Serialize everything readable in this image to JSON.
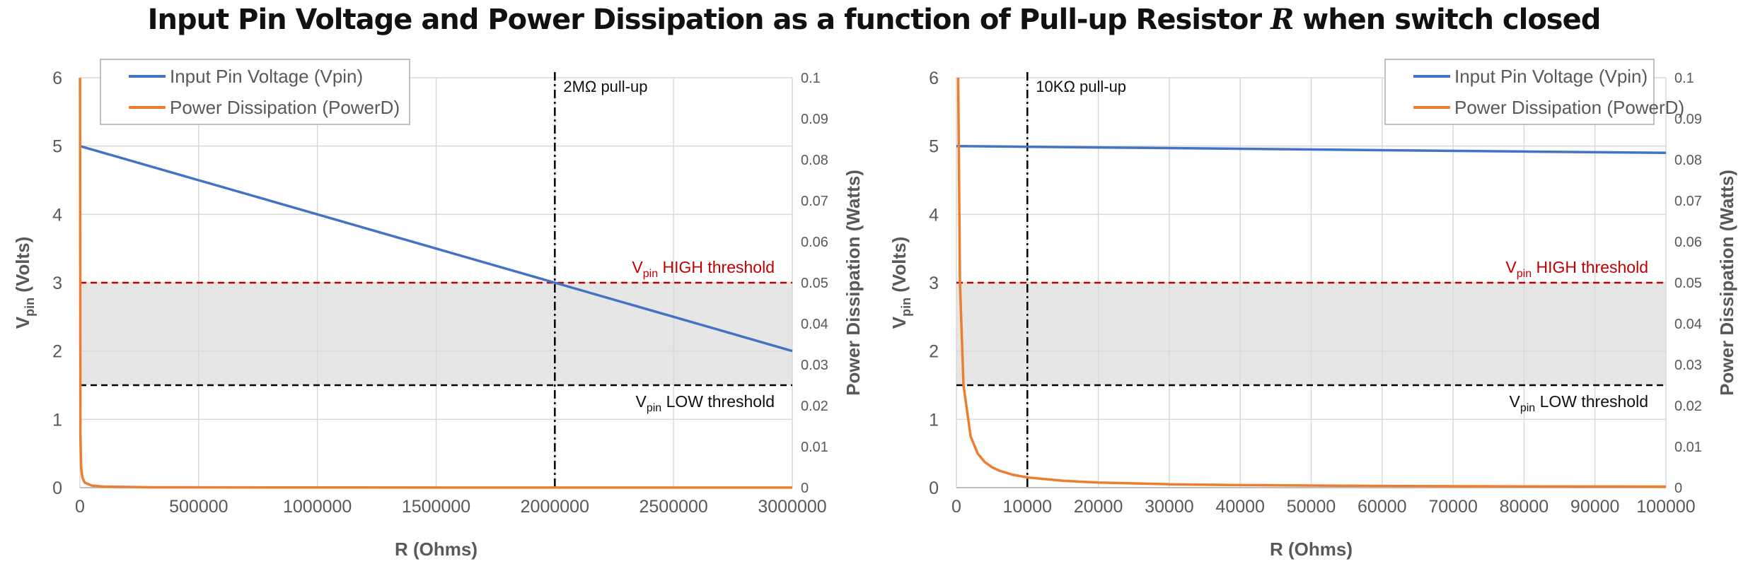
{
  "title": {
    "before": "Input Pin Voltage and Power Dissipation as a function of Pull-up Resistor ",
    "var": "R",
    "after": " when switch closed"
  },
  "chart_data": [
    {
      "type": "line",
      "xlabel": "R (Ohms)",
      "ylabel": "Vpin (Volts)",
      "y2label": "Power Dissipation (Watts)",
      "xlim": [
        0,
        3000000
      ],
      "ylim": [
        0,
        6
      ],
      "y2lim": [
        0,
        0.1
      ],
      "x_ticks": [
        "0",
        "500000",
        "1000000",
        "1500000",
        "2000000",
        "2500000",
        "3000000"
      ],
      "y_ticks": [
        "0",
        "1",
        "2",
        "3",
        "4",
        "5",
        "6"
      ],
      "y2_ticks": [
        "0",
        "0.01",
        "0.02",
        "0.03",
        "0.04",
        "0.05",
        "0.06",
        "0.07",
        "0.08",
        "0.09",
        "0.1"
      ],
      "grid": true,
      "legend_position": "top-left",
      "series": [
        {
          "name": "Input Pin Voltage (Vpin)",
          "axis": "left",
          "color": "#4472c4",
          "x": [
            0,
            500000,
            1000000,
            1500000,
            2000000,
            2500000,
            3000000
          ],
          "y": [
            5.0,
            4.5,
            4.0,
            3.5,
            3.0,
            2.5,
            2.0
          ]
        },
        {
          "name": "Power Dissipation (PowerD)",
          "axis": "right",
          "color": "#ed7d31",
          "x": [
            250,
            2000,
            5000,
            10000,
            20000,
            50000,
            100000,
            300000,
            1000000,
            3000000
          ],
          "y": [
            0.1,
            0.0125,
            0.005,
            0.0025,
            0.00125,
            0.0005,
            0.00025,
            8e-05,
            3e-05,
            1e-05
          ]
        }
      ],
      "shaded_band": {
        "from": 1.5,
        "to": 3.0,
        "color": "#e7e6e6"
      },
      "thresholds": [
        {
          "value": 3.0,
          "base": "V",
          "sub": "pin",
          "label": " HIGH threshold",
          "color": "#c00000"
        },
        {
          "value": 1.5,
          "base": "V",
          "sub": "pin",
          "label": " LOW threshold",
          "color": "#000000"
        }
      ],
      "marker_line": {
        "x": 2000000,
        "label": "2MΩ pull-up"
      }
    },
    {
      "type": "line",
      "xlabel": "R (Ohms)",
      "ylabel": "Vpin (Volts)",
      "y2label": "Power Dissipation (Watts)",
      "xlim": [
        0,
        100000
      ],
      "ylim": [
        0,
        6
      ],
      "y2lim": [
        0,
        0.1
      ],
      "x_ticks": [
        "0",
        "10000",
        "20000",
        "30000",
        "40000",
        "50000",
        "60000",
        "70000",
        "80000",
        "90000",
        "100000"
      ],
      "y_ticks": [
        "0",
        "1",
        "2",
        "3",
        "4",
        "5",
        "6"
      ],
      "y2_ticks": [
        "0",
        "0.01",
        "0.02",
        "0.03",
        "0.04",
        "0.05",
        "0.06",
        "0.07",
        "0.08",
        "0.09",
        "0.1"
      ],
      "grid": true,
      "legend_position": "top-right",
      "series": [
        {
          "name": "Input Pin Voltage (Vpin)",
          "axis": "left",
          "color": "#4472c4",
          "x": [
            0,
            20000,
            40000,
            60000,
            80000,
            100000
          ],
          "y": [
            5.0,
            4.98,
            4.96,
            4.94,
            4.92,
            4.9
          ]
        },
        {
          "name": "Power Dissipation (PowerD)",
          "axis": "right",
          "color": "#ed7d31",
          "x": [
            250,
            500,
            1000,
            2000,
            3000,
            4000,
            5000,
            6000,
            8000,
            10000,
            15000,
            20000,
            30000,
            40000,
            60000,
            80000,
            100000
          ],
          "y": [
            0.1,
            0.05,
            0.025,
            0.0125,
            0.00833,
            0.00625,
            0.005,
            0.00417,
            0.003125,
            0.0025,
            0.00167,
            0.00125,
            0.00083,
            0.000625,
            0.00042,
            0.00031,
            0.00025
          ]
        }
      ],
      "shaded_band": {
        "from": 1.5,
        "to": 3.0,
        "color": "#e7e6e6"
      },
      "thresholds": [
        {
          "value": 3.0,
          "base": "V",
          "sub": "pin",
          "label": " HIGH threshold",
          "color": "#c00000"
        },
        {
          "value": 1.5,
          "base": "V",
          "sub": "pin",
          "label": " LOW threshold",
          "color": "#000000"
        }
      ],
      "marker_line": {
        "x": 10000,
        "label": "10KΩ pull-up"
      }
    }
  ]
}
